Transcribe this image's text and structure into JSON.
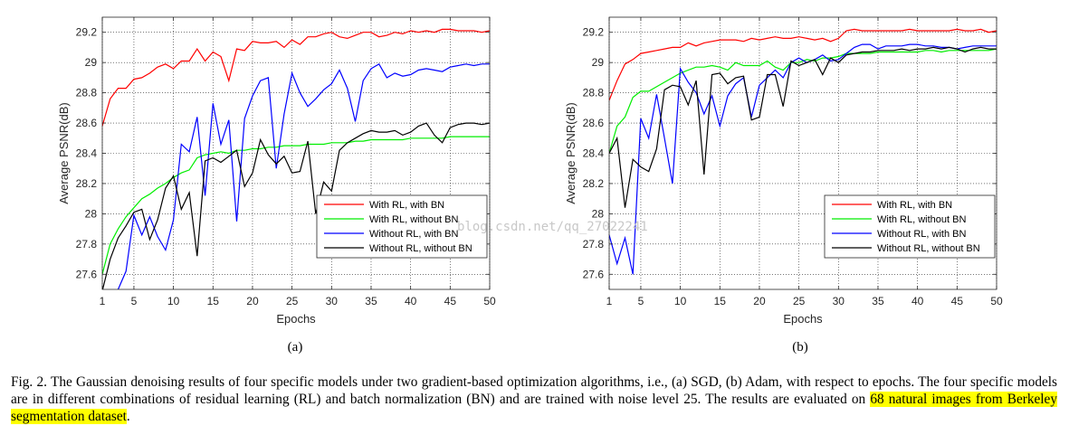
{
  "colors": {
    "with_rl_with_bn": "#ff0000",
    "with_rl_without_bn": "#00ee00",
    "without_rl_with_bn": "#0000ff",
    "without_rl_without_bn": "#000000",
    "highlight": "#ffff00"
  },
  "watermark": "blog.csdn.net/qq_27022241",
  "chart_data": [
    {
      "type": "line",
      "panel_label": "(a)",
      "xlabel": "Epochs",
      "ylabel": "Average PSNR(dB)",
      "xlim": [
        1,
        50
      ],
      "ylim": [
        27.5,
        29.3
      ],
      "xticks": [
        1,
        5,
        10,
        15,
        20,
        25,
        30,
        35,
        40,
        45,
        50
      ],
      "yticks": [
        27.6,
        27.8,
        28,
        28.2,
        28.4,
        28.6,
        28.8,
        29,
        29.2
      ],
      "ytick_labels": [
        "27.6",
        "27.8",
        "28",
        "28.2",
        "28.4",
        "28.6",
        "28.8",
        "29",
        "29.2"
      ],
      "grid": true,
      "legend_position": "bottom-right",
      "x": [
        1,
        2,
        3,
        4,
        5,
        6,
        7,
        8,
        9,
        10,
        11,
        12,
        13,
        14,
        15,
        16,
        17,
        18,
        19,
        20,
        21,
        22,
        23,
        24,
        25,
        26,
        27,
        28,
        29,
        30,
        31,
        32,
        33,
        34,
        35,
        36,
        37,
        38,
        39,
        40,
        41,
        42,
        43,
        44,
        45,
        46,
        47,
        48,
        49,
        50
      ],
      "series": [
        {
          "name": "With RL, with BN",
          "color_key": "with_rl_with_bn",
          "values": [
            28.58,
            28.76,
            28.83,
            28.83,
            28.89,
            28.9,
            28.93,
            28.97,
            28.99,
            28.96,
            29.01,
            29.01,
            29.09,
            29.01,
            29.07,
            29.04,
            28.88,
            29.09,
            29.08,
            29.14,
            29.13,
            29.13,
            29.14,
            29.1,
            29.15,
            29.12,
            29.17,
            29.17,
            29.19,
            29.2,
            29.17,
            29.16,
            29.18,
            29.2,
            29.2,
            29.17,
            29.18,
            29.2,
            29.19,
            29.21,
            29.2,
            29.21,
            29.2,
            29.22,
            29.22,
            29.21,
            29.21,
            29.21,
            29.2,
            29.21
          ]
        },
        {
          "name": "With RL, without BN",
          "color_key": "with_rl_without_bn",
          "values": [
            27.6,
            27.8,
            27.9,
            27.98,
            28.04,
            28.1,
            28.13,
            28.17,
            28.2,
            28.24,
            28.27,
            28.29,
            28.37,
            28.39,
            28.4,
            28.41,
            28.4,
            28.42,
            28.42,
            28.43,
            28.43,
            28.44,
            28.44,
            28.45,
            28.45,
            28.45,
            28.46,
            28.46,
            28.46,
            28.47,
            28.47,
            28.47,
            28.48,
            28.48,
            28.49,
            28.49,
            28.49,
            28.49,
            28.49,
            28.5,
            28.5,
            28.5,
            28.5,
            28.5,
            28.51,
            28.51,
            28.51,
            28.51,
            28.51,
            28.51
          ]
        },
        {
          "name": "Without RL, with BN",
          "color_key": "without_rl_with_bn",
          "values": [
            27.49,
            27.46,
            27.5,
            27.62,
            27.99,
            27.86,
            27.98,
            27.85,
            27.76,
            27.96,
            28.46,
            28.41,
            28.64,
            28.12,
            28.73,
            28.46,
            28.62,
            27.95,
            28.63,
            28.78,
            28.88,
            28.9,
            28.3,
            28.66,
            28.93,
            28.8,
            28.71,
            28.76,
            28.82,
            28.86,
            28.95,
            28.83,
            28.61,
            28.88,
            28.96,
            28.99,
            28.9,
            28.93,
            28.91,
            28.92,
            28.95,
            28.96,
            28.95,
            28.94,
            28.97,
            28.98,
            28.99,
            28.98,
            28.99,
            28.99
          ]
        },
        {
          "name": "Without RL, without BN",
          "color_key": "without_rl_without_bn",
          "values": [
            27.49,
            27.7,
            27.84,
            27.92,
            28.01,
            28.03,
            27.83,
            27.96,
            28.17,
            28.25,
            28.03,
            28.14,
            27.72,
            28.35,
            28.37,
            28.34,
            28.38,
            28.42,
            28.18,
            28.27,
            28.49,
            28.39,
            28.33,
            28.38,
            28.27,
            28.28,
            28.48,
            28.0,
            28.21,
            28.15,
            28.42,
            28.47,
            28.5,
            28.53,
            28.55,
            28.54,
            28.54,
            28.55,
            28.52,
            28.54,
            28.58,
            28.6,
            28.52,
            28.47,
            28.57,
            28.59,
            28.6,
            28.6,
            28.59,
            28.6
          ]
        }
      ]
    },
    {
      "type": "line",
      "panel_label": "(b)",
      "xlabel": "Epochs",
      "ylabel": "Average PSNR(dB)",
      "xlim": [
        1,
        50
      ],
      "ylim": [
        27.5,
        29.3
      ],
      "xticks": [
        1,
        5,
        10,
        15,
        20,
        25,
        30,
        35,
        40,
        45,
        50
      ],
      "yticks": [
        27.6,
        27.8,
        28,
        28.2,
        28.4,
        28.6,
        28.8,
        29,
        29.2
      ],
      "ytick_labels": [
        "27.6",
        "27.8",
        "28",
        "28.2",
        "28.4",
        "28.6",
        "28.8",
        "29",
        "29.2"
      ],
      "grid": true,
      "legend_position": "bottom-right",
      "x": [
        1,
        2,
        3,
        4,
        5,
        6,
        7,
        8,
        9,
        10,
        11,
        12,
        13,
        14,
        15,
        16,
        17,
        18,
        19,
        20,
        21,
        22,
        23,
        24,
        25,
        26,
        27,
        28,
        29,
        30,
        31,
        32,
        33,
        34,
        35,
        36,
        37,
        38,
        39,
        40,
        41,
        42,
        43,
        44,
        45,
        46,
        47,
        48,
        49,
        50
      ],
      "series": [
        {
          "name": "With RL, with BN",
          "color_key": "with_rl_with_bn",
          "values": [
            28.75,
            28.88,
            28.99,
            29.02,
            29.06,
            29.07,
            29.08,
            29.09,
            29.1,
            29.1,
            29.13,
            29.11,
            29.13,
            29.14,
            29.15,
            29.15,
            29.15,
            29.14,
            29.16,
            29.15,
            29.16,
            29.17,
            29.16,
            29.16,
            29.17,
            29.16,
            29.15,
            29.16,
            29.14,
            29.16,
            29.21,
            29.22,
            29.21,
            29.21,
            29.21,
            29.21,
            29.21,
            29.21,
            29.22,
            29.21,
            29.21,
            29.21,
            29.21,
            29.21,
            29.22,
            29.21,
            29.21,
            29.22,
            29.2,
            29.21
          ]
        },
        {
          "name": "With RL, without BN",
          "color_key": "with_rl_without_bn",
          "values": [
            28.4,
            28.58,
            28.64,
            28.77,
            28.81,
            28.81,
            28.84,
            28.87,
            28.9,
            28.93,
            28.95,
            28.97,
            28.97,
            28.98,
            28.97,
            28.95,
            29.0,
            28.98,
            28.98,
            28.98,
            29.01,
            28.97,
            28.95,
            29.0,
            29.0,
            29.02,
            29.01,
            29.03,
            29.03,
            29.04,
            29.06,
            29.06,
            29.06,
            29.06,
            29.07,
            29.07,
            29.07,
            29.07,
            29.07,
            29.07,
            29.08,
            29.08,
            29.07,
            29.08,
            29.08,
            29.08,
            29.08,
            29.08,
            29.08,
            29.09
          ]
        },
        {
          "name": "Without RL, with BN",
          "color_key": "without_rl_with_bn",
          "values": [
            27.86,
            27.67,
            27.84,
            27.6,
            28.63,
            28.5,
            28.79,
            28.5,
            28.2,
            28.96,
            28.87,
            28.8,
            28.66,
            28.78,
            28.58,
            28.78,
            28.86,
            28.9,
            28.64,
            28.85,
            28.9,
            28.95,
            28.9,
            29.0,
            29.03,
            29.0,
            29.02,
            29.05,
            29.01,
            29.02,
            29.06,
            29.1,
            29.12,
            29.12,
            29.09,
            29.11,
            29.11,
            29.11,
            29.12,
            29.12,
            29.11,
            29.11,
            29.1,
            29.1,
            29.09,
            29.1,
            29.11,
            29.11,
            29.11,
            29.11
          ]
        },
        {
          "name": "Without RL, without BN",
          "color_key": "without_rl_without_bn",
          "values": [
            28.4,
            28.5,
            28.04,
            28.36,
            28.31,
            28.28,
            28.43,
            28.82,
            28.85,
            28.84,
            28.72,
            28.88,
            28.26,
            28.92,
            28.93,
            28.86,
            28.9,
            28.91,
            28.62,
            28.64,
            28.92,
            28.92,
            28.71,
            29.01,
            28.98,
            29.0,
            29.02,
            28.92,
            29.03,
            29.0,
            29.05,
            29.06,
            29.07,
            29.07,
            29.08,
            29.08,
            29.08,
            29.09,
            29.08,
            29.09,
            29.09,
            29.1,
            29.09,
            29.1,
            29.09,
            29.07,
            29.09,
            29.1,
            29.09,
            29.09
          ]
        }
      ]
    }
  ],
  "caption": {
    "prefix": "Fig. 2.   The Gaussian denoising results of four specific models under two gradient-based optimization algorithms, i.e., (a) SGD, (b) Adam, with respect to epochs. The four specific models are in different combinations of residual learning (RL) and batch normalization (BN) and are trained with noise level 25. The results are evaluated on ",
    "highlight": "68 natural images from Berkeley segmentation dataset",
    "suffix": "."
  }
}
